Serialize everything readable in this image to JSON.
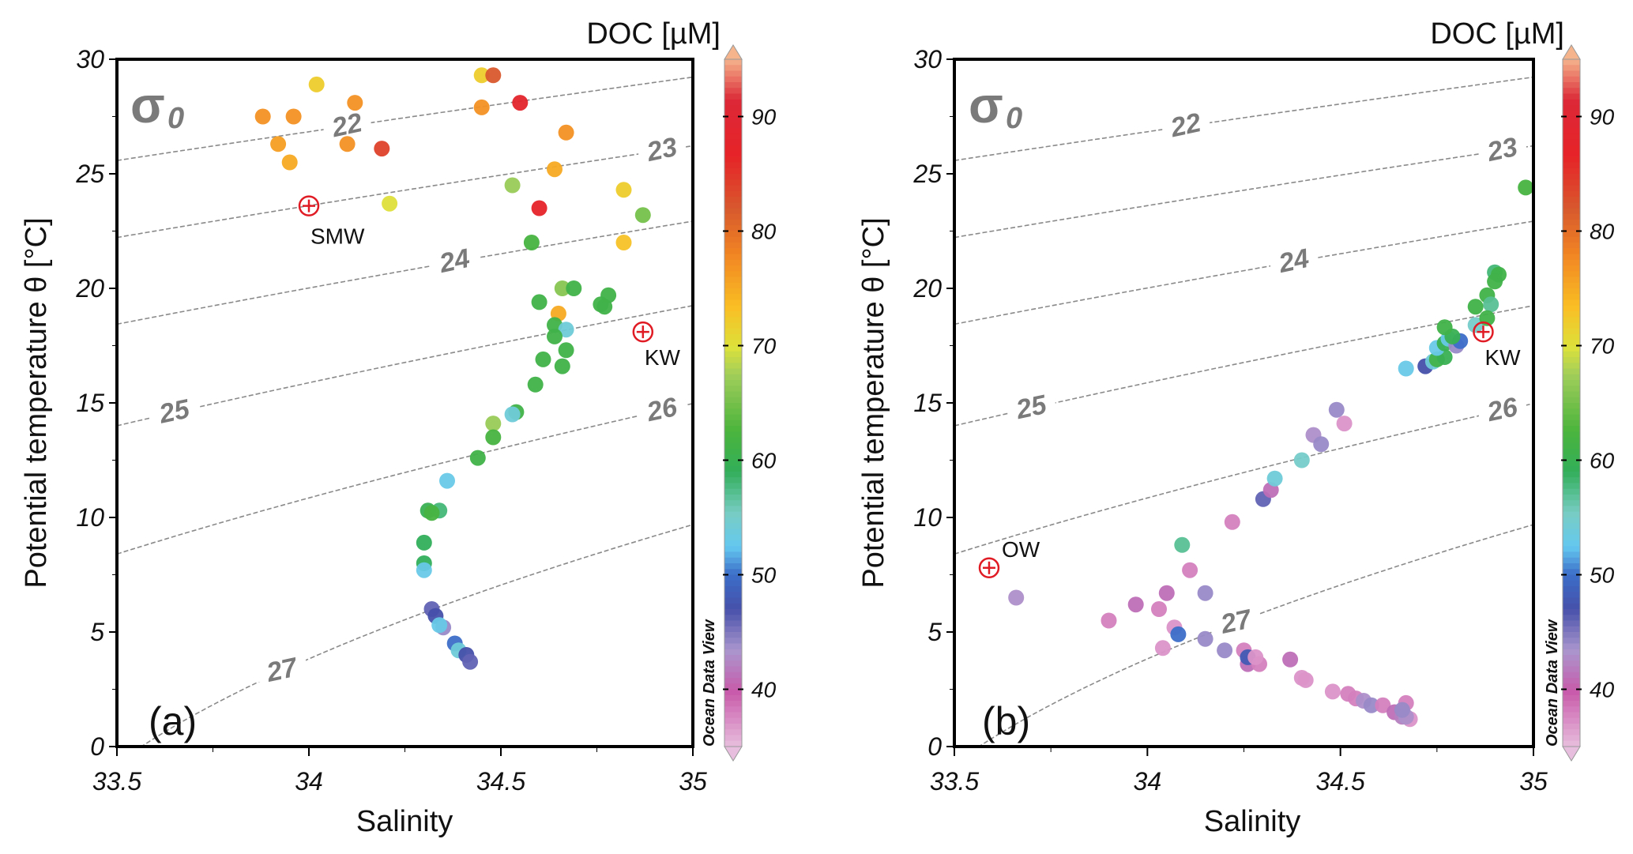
{
  "chart_data": [
    {
      "type": "scatter",
      "panel_label": "(a)",
      "xlabel": "Salinity",
      "ylabel": "Potential temperature θ [°C]",
      "xlim": [
        33.5,
        35
      ],
      "ylim": [
        0,
        30
      ],
      "x_ticks": [
        "33.5",
        "34",
        "34.5",
        "35"
      ],
      "y_ticks": [
        "0",
        "5",
        "10",
        "15",
        "20",
        "25",
        "30"
      ],
      "isopycnal_symbol": "σ",
      "isopycnal_subscript": "0",
      "isopycnals": [
        22,
        23,
        24,
        25,
        26,
        27
      ],
      "colorbar": {
        "title": "DOC [µM]",
        "range": [
          35,
          95
        ],
        "ticks": [
          "40",
          "50",
          "60",
          "70",
          "80",
          "90"
        ],
        "watermark": "Ocean Data View"
      },
      "reference_markers": [
        {
          "name": "SMW",
          "salinity": 34.0,
          "theta": 23.6
        },
        {
          "name": "KW",
          "salinity": 34.87,
          "theta": 18.1
        }
      ],
      "points": [
        [
          33.88,
          27.5,
          77
        ],
        [
          33.96,
          27.5,
          77
        ],
        [
          34.02,
          28.9,
          72
        ],
        [
          34.12,
          28.1,
          77
        ],
        [
          33.92,
          26.3,
          76
        ],
        [
          34.1,
          26.3,
          77
        ],
        [
          34.19,
          26.1,
          84
        ],
        [
          33.95,
          25.5,
          75
        ],
        [
          34.21,
          23.7,
          70
        ],
        [
          34.45,
          29.3,
          72
        ],
        [
          34.48,
          29.3,
          82
        ],
        [
          34.45,
          27.9,
          77
        ],
        [
          34.55,
          28.1,
          88
        ],
        [
          34.67,
          26.8,
          77
        ],
        [
          34.64,
          25.2,
          75
        ],
        [
          34.53,
          24.5,
          67
        ],
        [
          34.6,
          23.5,
          87
        ],
        [
          34.82,
          24.3,
          72
        ],
        [
          34.87,
          23.2,
          65
        ],
        [
          34.58,
          22.0,
          62
        ],
        [
          34.82,
          22.0,
          73
        ],
        [
          34.66,
          20.0,
          66
        ],
        [
          34.69,
          20.0,
          61
        ],
        [
          34.6,
          19.4,
          61
        ],
        [
          34.78,
          19.7,
          61
        ],
        [
          34.76,
          19.3,
          61
        ],
        [
          34.77,
          19.2,
          61
        ],
        [
          34.65,
          18.9,
          75
        ],
        [
          34.64,
          18.4,
          61
        ],
        [
          34.67,
          18.2,
          54
        ],
        [
          34.64,
          17.9,
          61
        ],
        [
          34.67,
          17.3,
          61
        ],
        [
          34.61,
          16.9,
          61
        ],
        [
          34.66,
          16.6,
          61
        ],
        [
          34.59,
          15.8,
          61
        ],
        [
          34.54,
          14.6,
          61
        ],
        [
          34.53,
          14.5,
          54
        ],
        [
          34.48,
          14.1,
          67
        ],
        [
          34.48,
          13.5,
          62
        ],
        [
          34.44,
          12.6,
          61
        ],
        [
          34.36,
          11.6,
          53
        ],
        [
          34.31,
          10.3,
          60
        ],
        [
          34.34,
          10.3,
          58
        ],
        [
          34.32,
          10.2,
          62
        ],
        [
          34.3,
          8.9,
          59
        ],
        [
          34.3,
          8.0,
          59
        ],
        [
          34.3,
          7.7,
          53
        ],
        [
          34.32,
          6.0,
          46
        ],
        [
          34.33,
          5.7,
          47
        ],
        [
          34.35,
          5.2,
          44
        ],
        [
          34.34,
          5.3,
          53
        ],
        [
          34.38,
          4.5,
          50
        ],
        [
          34.39,
          4.2,
          54
        ],
        [
          34.41,
          4.0,
          47
        ],
        [
          34.42,
          3.7,
          46
        ]
      ]
    },
    {
      "type": "scatter",
      "panel_label": "(b)",
      "xlabel": "Salinity",
      "ylabel": "Potential temperature θ [°C]",
      "xlim": [
        33.5,
        35
      ],
      "ylim": [
        0,
        30
      ],
      "x_ticks": [
        "33.5",
        "34",
        "34.5",
        "35"
      ],
      "y_ticks": [
        "0",
        "5",
        "10",
        "15",
        "20",
        "25",
        "30"
      ],
      "isopycnal_symbol": "σ",
      "isopycnal_subscript": "0",
      "isopycnals": [
        22,
        23,
        24,
        25,
        26,
        27
      ],
      "colorbar": {
        "title": "DOC [µM]",
        "range": [
          35,
          95
        ],
        "ticks": [
          "40",
          "50",
          "60",
          "70",
          "80",
          "90"
        ],
        "watermark": "Ocean Data View"
      },
      "reference_markers": [
        {
          "name": "OW",
          "salinity": 33.59,
          "theta": 7.8
        },
        {
          "name": "KW",
          "salinity": 34.87,
          "theta": 18.1
        }
      ],
      "points": [
        [
          33.66,
          6.5,
          43
        ],
        [
          33.9,
          5.5,
          38
        ],
        [
          33.97,
          6.2,
          41
        ],
        [
          34.03,
          6.0,
          38
        ],
        [
          34.05,
          6.7,
          41
        ],
        [
          34.04,
          4.3,
          37
        ],
        [
          34.07,
          5.2,
          37
        ],
        [
          34.08,
          4.9,
          50
        ],
        [
          34.09,
          8.8,
          57
        ],
        [
          34.11,
          7.7,
          38
        ],
        [
          34.15,
          6.7,
          44
        ],
        [
          34.15,
          4.7,
          44
        ],
        [
          34.2,
          4.2,
          44
        ],
        [
          34.22,
          9.8,
          38
        ],
        [
          34.25,
          4.2,
          38
        ],
        [
          34.26,
          3.6,
          41
        ],
        [
          34.26,
          3.9,
          48
        ],
        [
          34.29,
          3.6,
          38
        ],
        [
          34.28,
          3.9,
          37
        ],
        [
          34.3,
          10.8,
          46
        ],
        [
          34.32,
          11.2,
          41
        ],
        [
          34.33,
          11.7,
          54
        ],
        [
          34.37,
          3.8,
          41
        ],
        [
          34.4,
          3.0,
          37
        ],
        [
          34.41,
          2.9,
          37
        ],
        [
          34.4,
          12.5,
          55
        ],
        [
          34.43,
          13.6,
          43
        ],
        [
          34.45,
          13.2,
          44
        ],
        [
          34.49,
          14.7,
          44
        ],
        [
          34.51,
          14.1,
          37
        ],
        [
          34.48,
          2.4,
          37
        ],
        [
          34.52,
          2.3,
          38
        ],
        [
          34.54,
          2.1,
          38
        ],
        [
          34.56,
          2.0,
          43
        ],
        [
          34.58,
          1.8,
          44
        ],
        [
          34.61,
          1.8,
          38
        ],
        [
          34.64,
          1.5,
          41
        ],
        [
          34.66,
          1.3,
          42
        ],
        [
          34.68,
          1.2,
          37
        ],
        [
          34.67,
          1.9,
          38
        ],
        [
          34.67,
          1.3,
          43
        ],
        [
          34.66,
          1.6,
          44
        ],
        [
          34.67,
          16.5,
          53
        ],
        [
          34.72,
          16.6,
          47
        ],
        [
          34.74,
          16.8,
          54
        ],
        [
          34.75,
          16.9,
          61
        ],
        [
          34.77,
          17.0,
          60
        ],
        [
          34.75,
          17.4,
          53
        ],
        [
          34.77,
          17.6,
          60
        ],
        [
          34.78,
          17.8,
          53
        ],
        [
          34.8,
          17.5,
          44
        ],
        [
          34.81,
          17.7,
          50
        ],
        [
          34.79,
          17.9,
          60
        ],
        [
          34.77,
          18.3,
          61
        ],
        [
          34.85,
          18.4,
          55
        ],
        [
          34.85,
          19.2,
          61
        ],
        [
          34.88,
          19.7,
          61
        ],
        [
          34.89,
          19.3,
          57
        ],
        [
          34.88,
          18.7,
          61
        ],
        [
          34.9,
          20.7,
          58
        ],
        [
          34.9,
          20.3,
          61
        ],
        [
          34.91,
          20.6,
          61
        ],
        [
          34.98,
          24.4,
          62
        ]
      ]
    }
  ]
}
